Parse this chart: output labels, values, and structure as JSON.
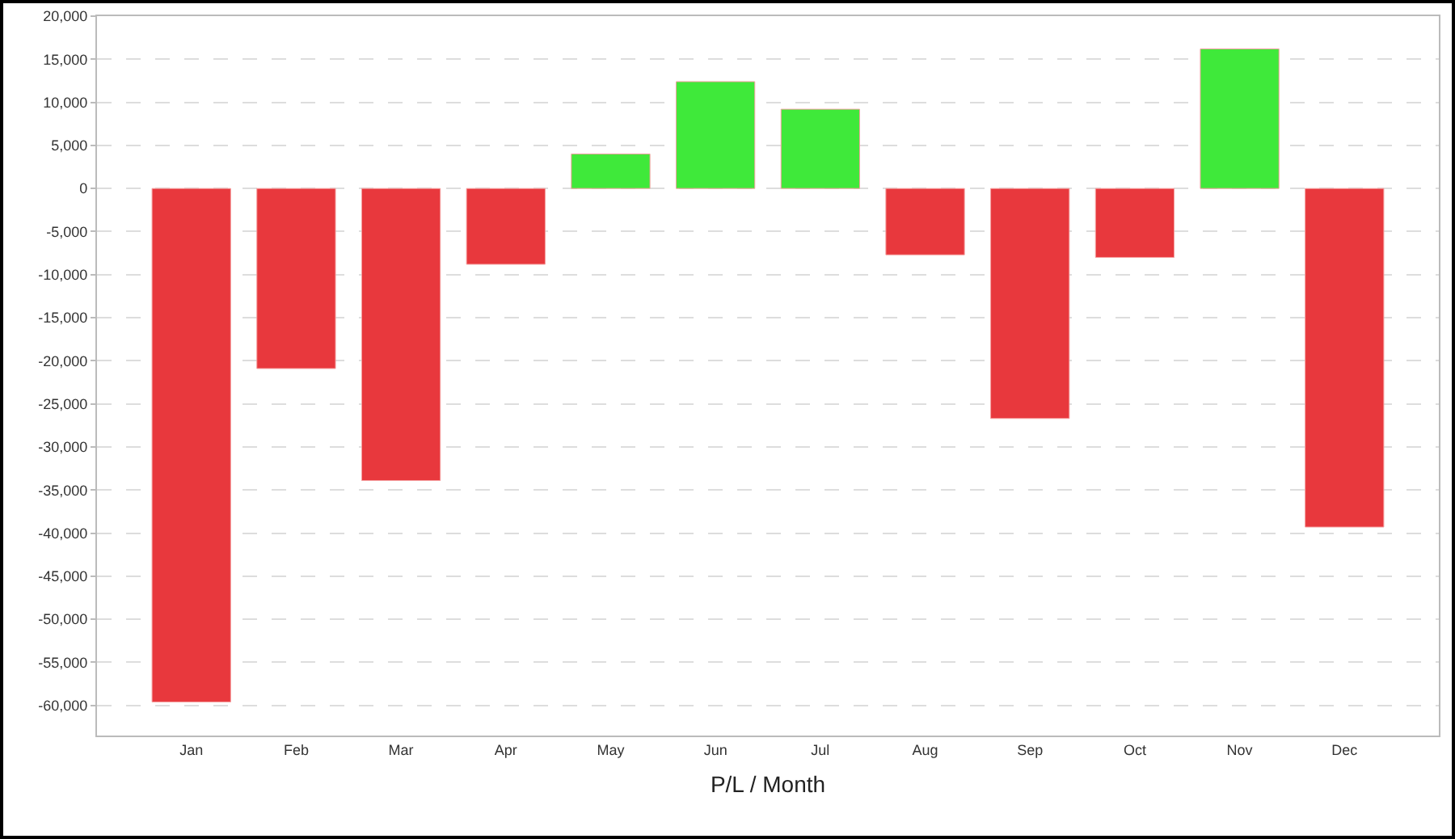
{
  "chart_data": {
    "type": "bar",
    "xlabel": "P/L / Month",
    "categories": [
      "Jan",
      "Feb",
      "Mar",
      "Apr",
      "May",
      "Jun",
      "Jul",
      "Aug",
      "Sep",
      "Oct",
      "Nov",
      "Dec"
    ],
    "values": [
      -59600,
      -20900,
      -33900,
      -8800,
      4000,
      12400,
      9200,
      -7700,
      -26700,
      -8000,
      16200,
      -39300
    ],
    "colors": [
      "#e8383d",
      "#e8383d",
      "#e8383d",
      "#e8383d",
      "#3fe93a",
      "#3fe93a",
      "#3fe93a",
      "#e8383d",
      "#e8383d",
      "#e8383d",
      "#3fe93a",
      "#e8383d"
    ],
    "ylim": [
      -63500,
      20000
    ],
    "yticks": [
      {
        "value": -60000,
        "label": "-60,000"
      },
      {
        "value": -55000,
        "label": "-55,000"
      },
      {
        "value": -50000,
        "label": "-50,000"
      },
      {
        "value": -45000,
        "label": "-45,000"
      },
      {
        "value": -40000,
        "label": "-40,000"
      },
      {
        "value": -35000,
        "label": "-35,000"
      },
      {
        "value": -30000,
        "label": "-30,000"
      },
      {
        "value": -25000,
        "label": "-25,000"
      },
      {
        "value": -20000,
        "label": "-20,000"
      },
      {
        "value": -15000,
        "label": "-15,000"
      },
      {
        "value": -10000,
        "label": "-10,000"
      },
      {
        "value": -5000,
        "label": "-5,000"
      },
      0,
      {
        "value": 5000,
        "label": "5,000"
      },
      {
        "value": 10000,
        "label": "10,000"
      },
      {
        "value": 15000,
        "label": "15,000"
      },
      {
        "value": 20000,
        "label": "20,000"
      }
    ],
    "grid": "y"
  }
}
